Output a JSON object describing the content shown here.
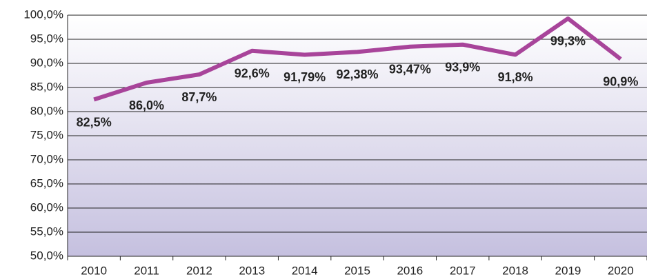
{
  "chart_data": {
    "type": "line",
    "categories": [
      "2010",
      "2011",
      "2012",
      "2013",
      "2014",
      "2015",
      "2016",
      "2017",
      "2018",
      "2019",
      "2020"
    ],
    "values": [
      82.5,
      86.0,
      87.7,
      92.6,
      91.79,
      92.38,
      93.47,
      93.9,
      91.8,
      99.3,
      90.9
    ],
    "value_labels": [
      "82,5%",
      "86,0%",
      "87,7%",
      "92,6%",
      "91,79%",
      "92,38%",
      "93,47%",
      "93,9%",
      "91,8%",
      "99,3%",
      "90,9%"
    ],
    "color": "#a8449a",
    "ylim": [
      50,
      100
    ],
    "yticks": [
      {
        "value": 50,
        "label": "50,0%"
      },
      {
        "value": 55,
        "label": "55,0%"
      },
      {
        "value": 60,
        "label": "60,0%"
      },
      {
        "value": 65,
        "label": "65,0%"
      },
      {
        "value": 70,
        "label": "70,0%"
      },
      {
        "value": 75,
        "label": "75,0%"
      },
      {
        "value": 80,
        "label": "80,0%"
      },
      {
        "value": 85,
        "label": "85,0%"
      },
      {
        "value": 90,
        "label": "90,0%"
      },
      {
        "value": 95,
        "label": "95,0%"
      },
      {
        "value": 100,
        "label": "100,0%"
      }
    ],
    "grid": true
  }
}
